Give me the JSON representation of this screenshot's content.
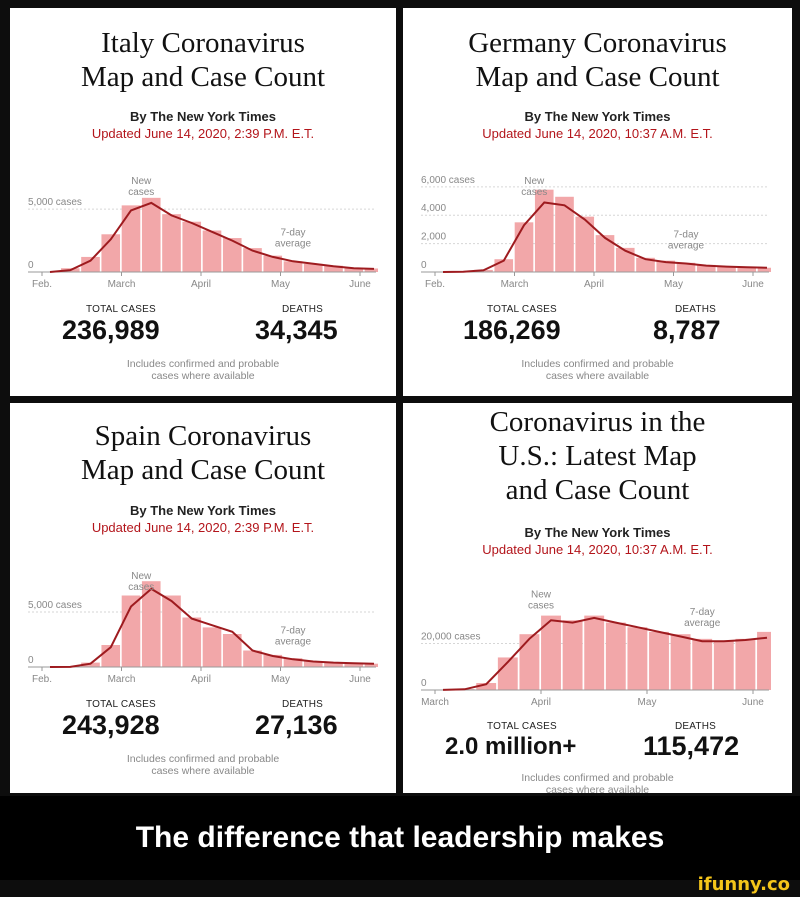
{
  "caption": "The difference that leadership makes",
  "watermark": "ifunny.co",
  "colors": {
    "bars": "#f2a7a9",
    "line": "#9e1b1f",
    "updated": "#b3151b"
  },
  "panels": [
    {
      "title_1": "Italy Coronavirus",
      "title_2": "Map and Case Count",
      "title_3": "",
      "byline": "By The New York Times",
      "updated": "Updated June 14, 2020, 2:39 P.M. E.T.",
      "total_cases_label": "TOTAL CASES",
      "total_cases": "236,989",
      "deaths_label": "DEATHS",
      "deaths": "34,345",
      "note_1": "Includes confirmed and probable",
      "note_2": "cases where available"
    },
    {
      "title_1": "Germany Coronavirus",
      "title_2": "Map and Case Count",
      "title_3": "",
      "byline": "By The New York Times",
      "updated": "Updated June 14, 2020, 10:37 A.M. E.T.",
      "total_cases_label": "TOTAL CASES",
      "total_cases": "186,269",
      "deaths_label": "DEATHS",
      "deaths": "8,787",
      "note_1": "Includes confirmed and probable",
      "note_2": "cases where available"
    },
    {
      "title_1": "Spain Coronavirus",
      "title_2": "Map and Case Count",
      "title_3": "",
      "byline": "By The New York Times",
      "updated": "Updated June 14, 2020, 2:39 P.M. E.T.",
      "total_cases_label": "TOTAL CASES",
      "total_cases": "243,928",
      "deaths_label": "DEATHS",
      "deaths": "27,136",
      "note_1": "Includes confirmed and probable",
      "note_2": "cases where available"
    },
    {
      "title_1": "Coronavirus in the",
      "title_2": "U.S.: Latest Map",
      "title_3": "and Case Count",
      "byline": "By The New York Times",
      "updated": "Updated June 14, 2020, 10:37 A.M. E.T.",
      "total_cases_label": "TOTAL CASES",
      "total_cases": "2.0 million+",
      "deaths_label": "DEATHS",
      "deaths": "115,472",
      "note_1": "Includes confirmed and probable",
      "note_2": "cases where available"
    }
  ],
  "chart_data": [
    {
      "type": "bar",
      "series": [
        {
          "name": "New cases"
        },
        {
          "name": "7-day average"
        }
      ],
      "annotations": [
        "New cases",
        "7-day average"
      ],
      "ytick_labels": [
        "5,000 cases",
        "0"
      ],
      "yticks": [
        5000,
        0
      ],
      "ylim": [
        0,
        7000
      ],
      "xtick_labels": [
        "Feb.",
        "March",
        "April",
        "May",
        "June"
      ],
      "x": [
        "Feb 15",
        "Feb 29",
        "Mar 7",
        "Mar 14",
        "Mar 21",
        "Mar 28",
        "Apr 4",
        "Apr 11",
        "Apr 18",
        "Apr 25",
        "May 2",
        "May 9",
        "May 16",
        "May 23",
        "May 30",
        "Jun 6",
        "Jun 13"
      ],
      "values": [
        0,
        300,
        1200,
        3000,
        5300,
        5900,
        4600,
        4000,
        3300,
        2700,
        1900,
        1300,
        850,
        650,
        500,
        300,
        280
      ],
      "average": [
        0,
        150,
        900,
        2600,
        4900,
        5500,
        4500,
        3900,
        3200,
        2500,
        1700,
        1200,
        850,
        650,
        450,
        300,
        250
      ]
    },
    {
      "type": "bar",
      "series": [
        {
          "name": "New cases"
        },
        {
          "name": "7-day average"
        }
      ],
      "annotations": [
        "New cases",
        "7-day average"
      ],
      "ytick_labels": [
        "6,000 cases",
        "4,000",
        "2,000",
        "0"
      ],
      "yticks": [
        6000,
        4000,
        2000,
        0
      ],
      "ylim": [
        0,
        6200
      ],
      "xtick_labels": [
        "Feb.",
        "March",
        "April",
        "May",
        "June"
      ],
      "x": [
        "Feb 15",
        "Feb 29",
        "Mar 7",
        "Mar 14",
        "Mar 21",
        "Mar 28",
        "Apr 4",
        "Apr 11",
        "Apr 18",
        "Apr 25",
        "May 2",
        "May 9",
        "May 16",
        "May 23",
        "May 30",
        "Jun 6",
        "Jun 13"
      ],
      "values": [
        0,
        40,
        150,
        900,
        3500,
        5800,
        5300,
        3900,
        2600,
        1700,
        1000,
        800,
        650,
        500,
        400,
        350,
        300
      ],
      "average": [
        0,
        20,
        120,
        800,
        3300,
        4900,
        4700,
        3700,
        2400,
        1500,
        900,
        700,
        600,
        450,
        380,
        330,
        300
      ]
    },
    {
      "type": "bar",
      "series": [
        {
          "name": "New cases"
        },
        {
          "name": "7-day average"
        }
      ],
      "annotations": [
        "New cases",
        "7-day average"
      ],
      "ytick_labels": [
        "5,000 cases",
        "0"
      ],
      "yticks": [
        5000,
        0
      ],
      "ylim": [
        0,
        8000
      ],
      "xtick_labels": [
        "Feb.",
        "March",
        "April",
        "May",
        "June"
      ],
      "x": [
        "Feb 15",
        "Feb 29",
        "Mar 7",
        "Mar 14",
        "Mar 21",
        "Mar 28",
        "Apr 4",
        "Apr 11",
        "Apr 18",
        "Apr 25",
        "May 2",
        "May 9",
        "May 16",
        "May 23",
        "May 30",
        "Jun 6",
        "Jun 13"
      ],
      "values": [
        0,
        20,
        400,
        2000,
        6500,
        7800,
        6500,
        4500,
        3600,
        3000,
        1500,
        1100,
        800,
        500,
        400,
        350,
        300
      ],
      "average": [
        0,
        10,
        300,
        1800,
        5500,
        7100,
        6000,
        4400,
        3800,
        3200,
        1500,
        1000,
        700,
        500,
        400,
        350,
        300
      ]
    },
    {
      "type": "bar",
      "series": [
        {
          "name": "New cases"
        },
        {
          "name": "7-day average"
        }
      ],
      "annotations": [
        "New cases",
        "7-day average"
      ],
      "ytick_labels": [
        "20,000 cases",
        "0"
      ],
      "yticks": [
        20000,
        0
      ],
      "ylim": [
        0,
        40000
      ],
      "xtick_labels": [
        "March",
        "April",
        "May",
        "June"
      ],
      "x": [
        "Mar 1",
        "Mar 8",
        "Mar 15",
        "Mar 22",
        "Mar 29",
        "Apr 5",
        "Apr 12",
        "Apr 19",
        "Apr 26",
        "May 3",
        "May 10",
        "May 17",
        "May 24",
        "May 31",
        "Jun 7",
        "Jun 13"
      ],
      "values": [
        50,
        400,
        3000,
        14000,
        24000,
        32000,
        30000,
        32000,
        29000,
        27000,
        25000,
        24000,
        22000,
        21000,
        22000,
        25000
      ],
      "average": [
        30,
        300,
        2500,
        12000,
        22000,
        30000,
        29000,
        31000,
        29000,
        27000,
        25000,
        23000,
        21000,
        21000,
        21500,
        22500
      ]
    }
  ]
}
